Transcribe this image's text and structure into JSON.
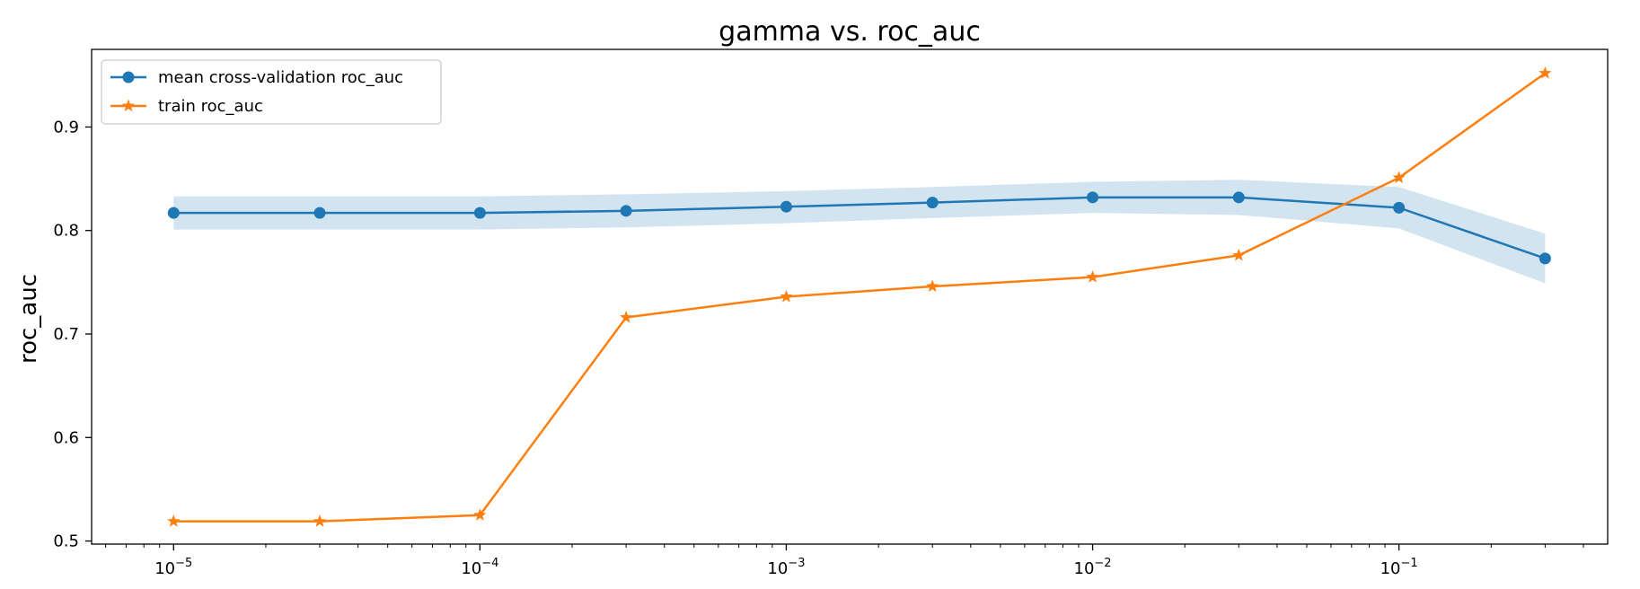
{
  "chart_data": {
    "type": "line",
    "title": "gamma vs. roc_auc",
    "xlabel": "",
    "ylabel": "roc_auc",
    "xscale": "log",
    "x": [
      1e-05,
      3e-05,
      0.0001,
      0.0003,
      0.001,
      0.003,
      0.01,
      0.03,
      0.1,
      0.3
    ],
    "x_ticks": [
      {
        "value": 1e-05,
        "base": "10",
        "exp": "−5"
      },
      {
        "value": 0.0001,
        "base": "10",
        "exp": "−4"
      },
      {
        "value": 0.001,
        "base": "10",
        "exp": "−3"
      },
      {
        "value": 0.01,
        "base": "10",
        "exp": "−2"
      },
      {
        "value": 0.1,
        "base": "10",
        "exp": "−1"
      }
    ],
    "xlim": [
      5.4e-06,
      0.48
    ],
    "ylim": [
      0.497,
      0.975
    ],
    "y_ticks": [
      {
        "value": 0.5,
        "label": "0.5"
      },
      {
        "value": 0.6,
        "label": "0.6"
      },
      {
        "value": 0.7,
        "label": "0.7"
      },
      {
        "value": 0.8,
        "label": "0.8"
      },
      {
        "value": 0.9,
        "label": "0.9"
      }
    ],
    "grid": false,
    "legend_position": "upper-left",
    "series": [
      {
        "name": "mean cross-validation roc_auc",
        "color": "#1f77b4",
        "marker": "circle",
        "values": [
          0.817,
          0.817,
          0.817,
          0.819,
          0.823,
          0.827,
          0.832,
          0.832,
          0.822,
          0.773
        ],
        "band_lower": [
          0.801,
          0.801,
          0.801,
          0.803,
          0.807,
          0.812,
          0.817,
          0.815,
          0.802,
          0.749
        ],
        "band_upper": [
          0.833,
          0.833,
          0.833,
          0.835,
          0.838,
          0.842,
          0.847,
          0.849,
          0.842,
          0.797
        ]
      },
      {
        "name": "train roc_auc",
        "color": "#ff7f0e",
        "marker": "star",
        "values": [
          0.519,
          0.519,
          0.525,
          0.716,
          0.736,
          0.746,
          0.755,
          0.776,
          0.851,
          0.952
        ]
      }
    ]
  }
}
